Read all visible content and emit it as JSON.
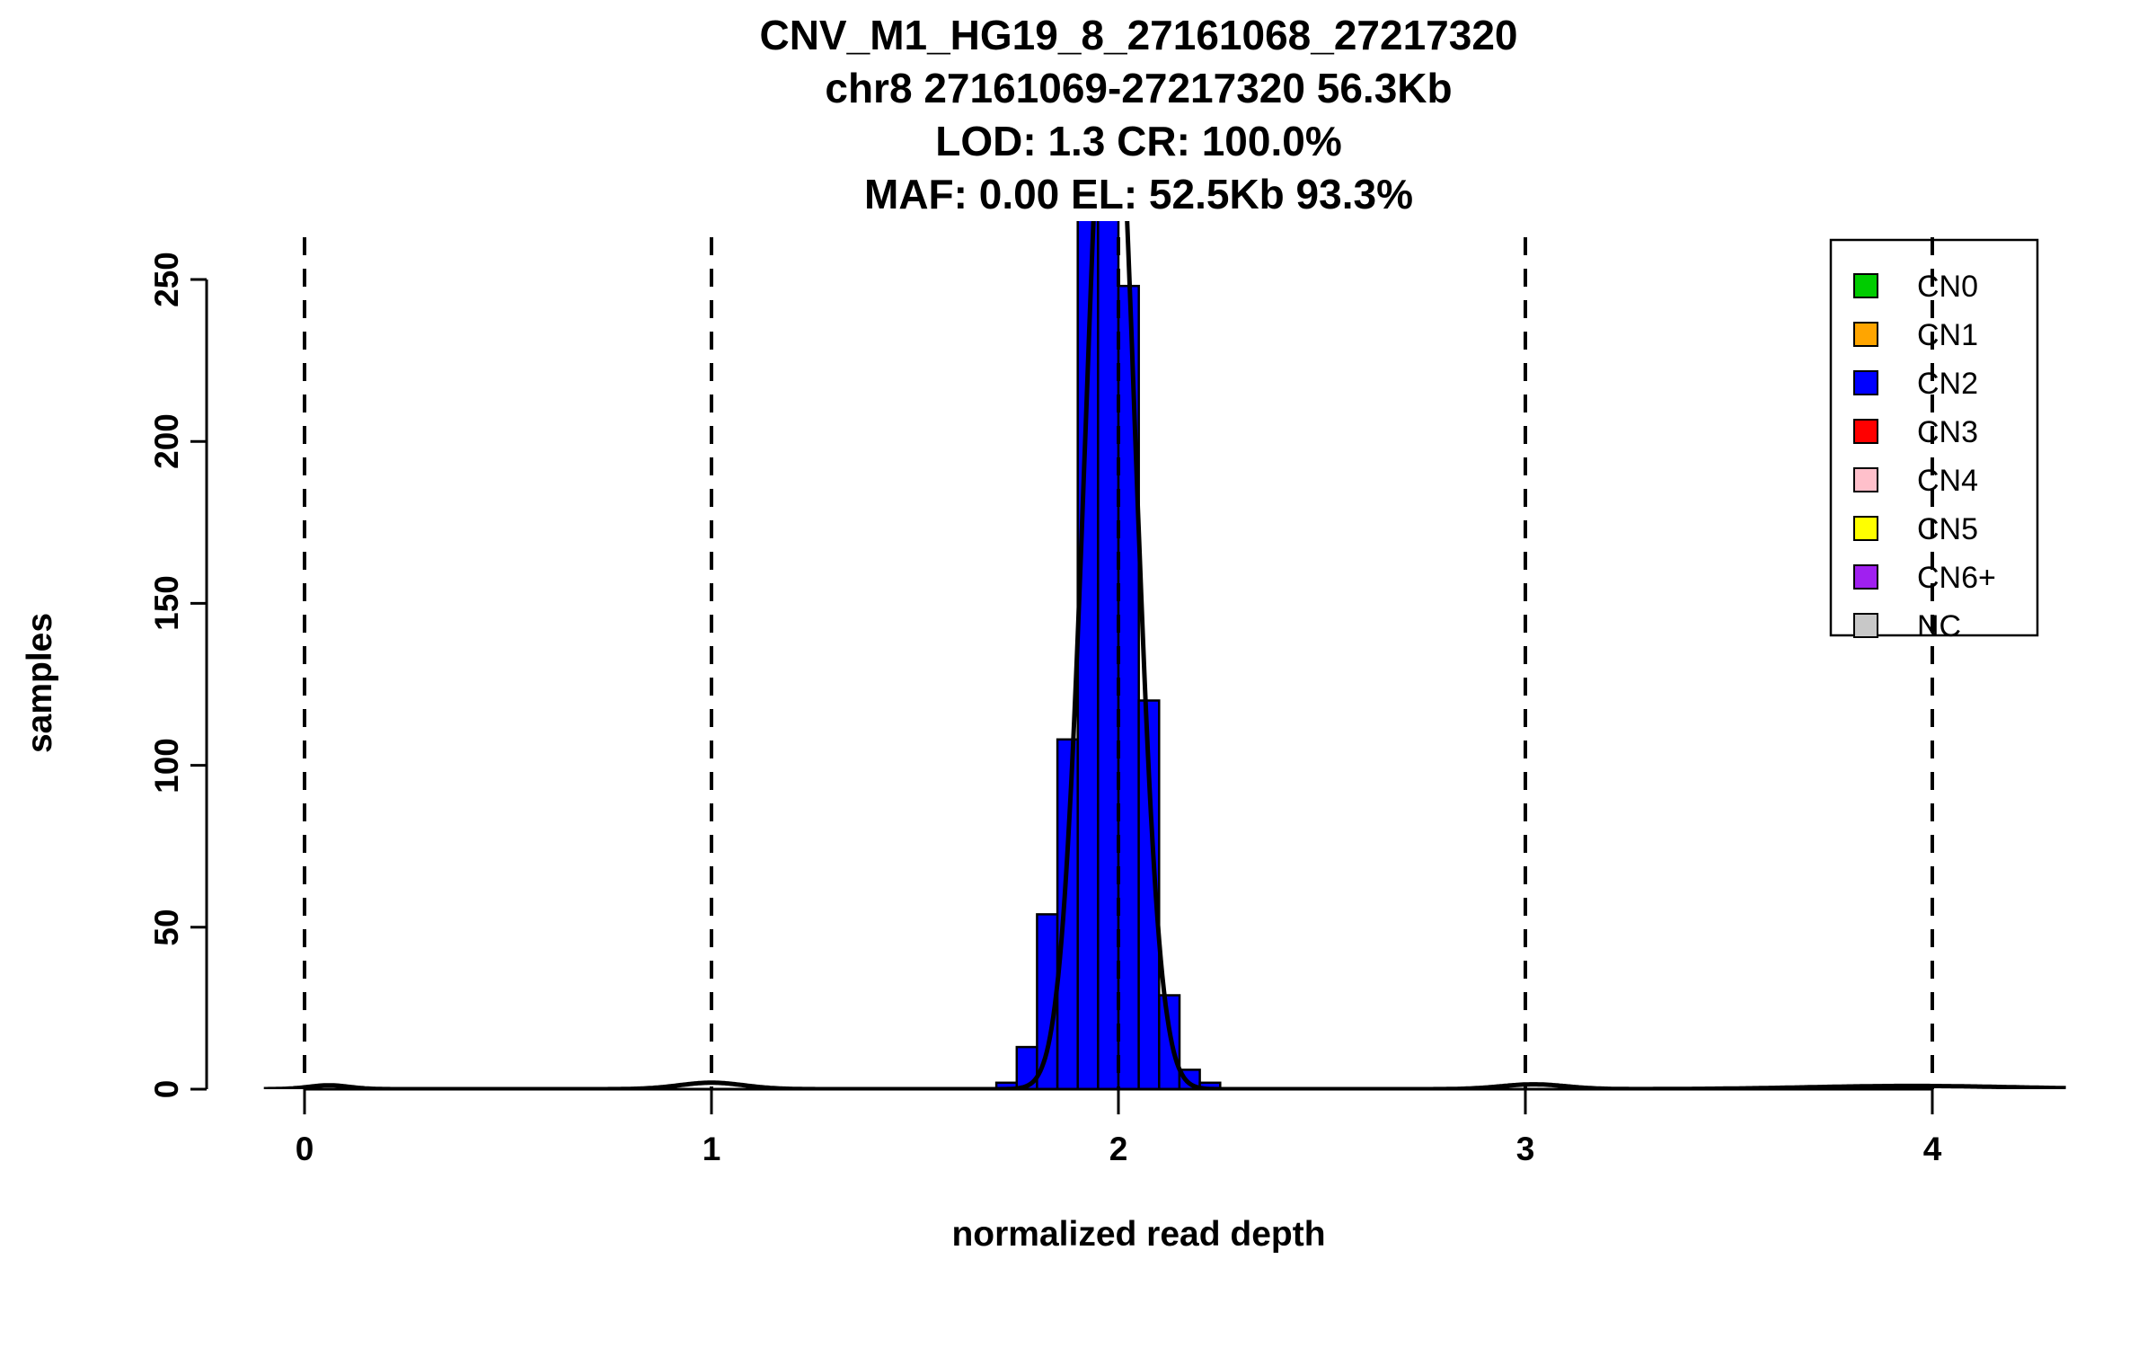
{
  "chart_data": {
    "type": "bar",
    "title": "CNV_M1_HG19_8_27161068_27217320",
    "title_lines": [
      "CNV_M1_HG19_8_27161068_27217320",
      "chr8 27161069-27217320 56.3Kb",
      "LOD: 1.3 CR: 100.0%",
      "MAF: 0.00 EL: 52.5Kb 93.3%"
    ],
    "xlabel": "normalized read depth",
    "ylabel": "samples",
    "xticks": [
      0,
      1,
      2,
      3,
      4
    ],
    "yticks": [
      0,
      50,
      100,
      150,
      200,
      250
    ],
    "xlim": [
      -0.1,
      4.33
    ],
    "ylim": [
      0,
      267
    ],
    "grid": false,
    "legend_position": "top-right",
    "dashed_guides_x": [
      0,
      1,
      2,
      3,
      4
    ],
    "bin_width": 0.05,
    "bar_color": "#0000FF",
    "bar_border_color": "#000000",
    "curve_color": "#000000",
    "bars": [
      {
        "x": 1.7,
        "count": 2
      },
      {
        "x": 1.75,
        "count": 13
      },
      {
        "x": 1.8,
        "count": 54
      },
      {
        "x": 1.85,
        "count": 108
      },
      {
        "x": 1.9,
        "count": 272
      },
      {
        "x": 1.95,
        "count": 270
      },
      {
        "x": 2.0,
        "count": 248
      },
      {
        "x": 2.05,
        "count": 120
      },
      {
        "x": 2.1,
        "count": 29
      },
      {
        "x": 2.15,
        "count": 6
      },
      {
        "x": 2.2,
        "count": 2
      }
    ],
    "curve_components": [
      {
        "mean": 1.98,
        "sd": 0.06,
        "amplitude": 340
      },
      {
        "mean": 0.06,
        "sd": 0.05,
        "amplitude": 1.2
      },
      {
        "mean": 1.0,
        "sd": 0.08,
        "amplitude": 2
      },
      {
        "mean": 3.02,
        "sd": 0.08,
        "amplitude": 1.5
      },
      {
        "mean": 3.95,
        "sd": 0.25,
        "amplitude": 1
      }
    ],
    "legend": {
      "items": [
        {
          "label": "CN0",
          "color": "#00CC00"
        },
        {
          "label": "CN1",
          "color": "#FFA500"
        },
        {
          "label": "CN2",
          "color": "#0000FF"
        },
        {
          "label": "CN3",
          "color": "#FF0000"
        },
        {
          "label": "CN4",
          "color": "#FFC0CB"
        },
        {
          "label": "CN5",
          "color": "#FFFF00"
        },
        {
          "label": "CN6+",
          "color": "#A020F0"
        },
        {
          "label": "NC",
          "color": "#C8C8C8"
        }
      ]
    }
  }
}
